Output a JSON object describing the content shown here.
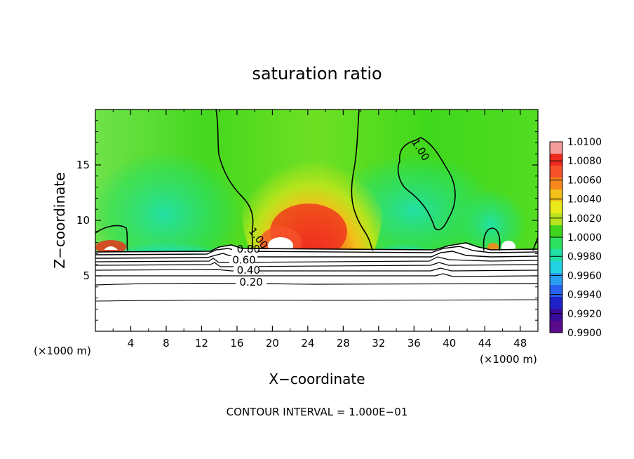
{
  "chart_data": {
    "type": "contour",
    "title": "saturation ratio",
    "xlabel": "X−coordinate",
    "ylabel": "Z−coordinate",
    "x_unit_left": "(×1000 m)",
    "x_unit_right": "(×1000 m)",
    "footer": "CONTOUR INTERVAL = 1.000E−01",
    "xlim": [
      0,
      50
    ],
    "ylim": [
      0,
      20
    ],
    "xticks": [
      4,
      8,
      12,
      16,
      20,
      24,
      28,
      32,
      36,
      40,
      44,
      48
    ],
    "yticks": [
      5,
      10,
      15
    ],
    "colorbar": {
      "min": 0.99,
      "max": 1.01,
      "labels": [
        "1.0100",
        "1.0080",
        "1.0060",
        "1.0040",
        "1.0020",
        "1.0000",
        "0.9980",
        "0.9960",
        "0.9940",
        "0.9920",
        "0.9900"
      ],
      "colors": [
        "#f29c9c",
        "#ee2a1e",
        "#f5522a",
        "#f8881c",
        "#f2c21a",
        "#eaea1a",
        "#b7e41c",
        "#3ed61c",
        "#2ee060",
        "#22e0a4",
        "#22d2e2",
        "#2a9ef2",
        "#2a62f0",
        "#1e22c8",
        "#3a0c9c",
        "#5a0a8a"
      ]
    },
    "contour_labels": [
      {
        "text": "1.00",
        "x": 36.4,
        "z": 16.2,
        "angle": 58
      },
      {
        "text": "1.00",
        "x": 18.1,
        "z": 8.2,
        "angle": 52
      },
      {
        "text": "0.80",
        "x": 17.3,
        "z": 7.1,
        "angle": 0
      },
      {
        "text": "0.60",
        "x": 16.8,
        "z": 6.1,
        "angle": 0
      },
      {
        "text": "0.40",
        "x": 17.3,
        "z": 5.2,
        "angle": 0
      },
      {
        "text": "0.20",
        "x": 17.6,
        "z": 4.1,
        "angle": 0
      }
    ]
  }
}
